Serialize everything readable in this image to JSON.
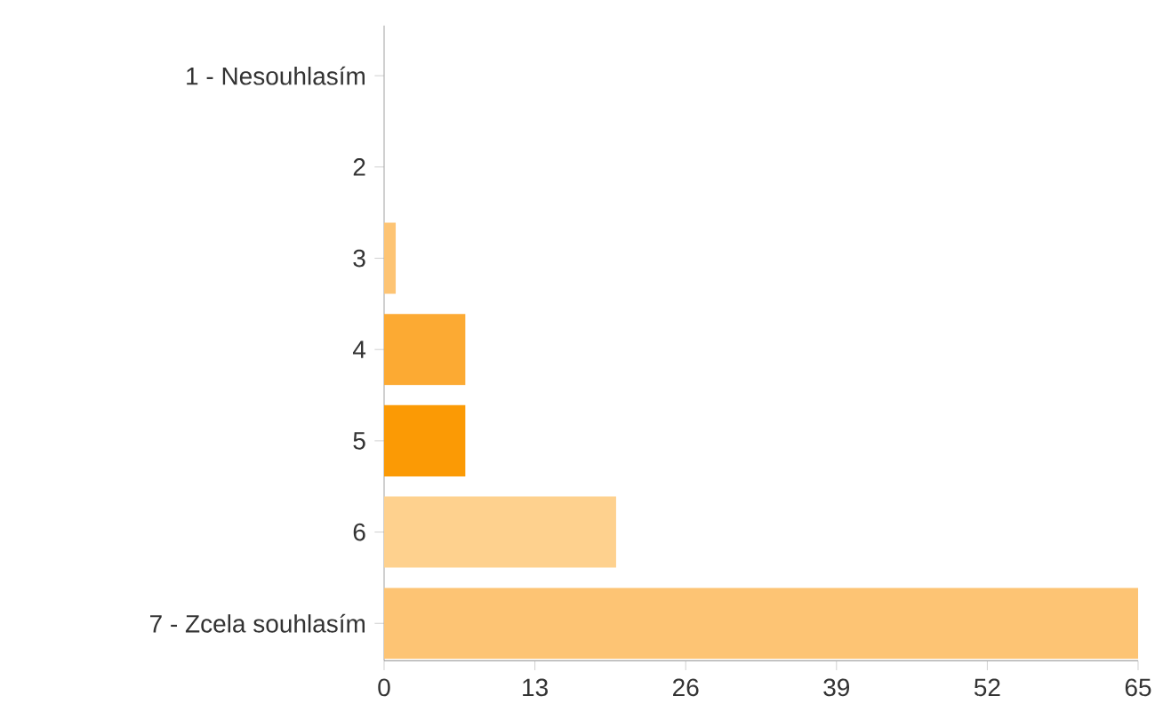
{
  "chart_data": {
    "type": "bar",
    "orientation": "horizontal",
    "categories": [
      "1 - Nesouhlasím",
      "2",
      "3",
      "4",
      "5",
      "6",
      "7 - Zcela souhlasím"
    ],
    "values": [
      0,
      0,
      1,
      7,
      7,
      20,
      65
    ],
    "colors": [
      "#fdc474",
      "#fdc474",
      "#fdc474",
      "#fcaa33",
      "#fb9a05",
      "#fed18e",
      "#fdc474"
    ],
    "xlim": [
      0,
      65
    ],
    "xticks": [
      0,
      13,
      26,
      39,
      52,
      65
    ]
  }
}
